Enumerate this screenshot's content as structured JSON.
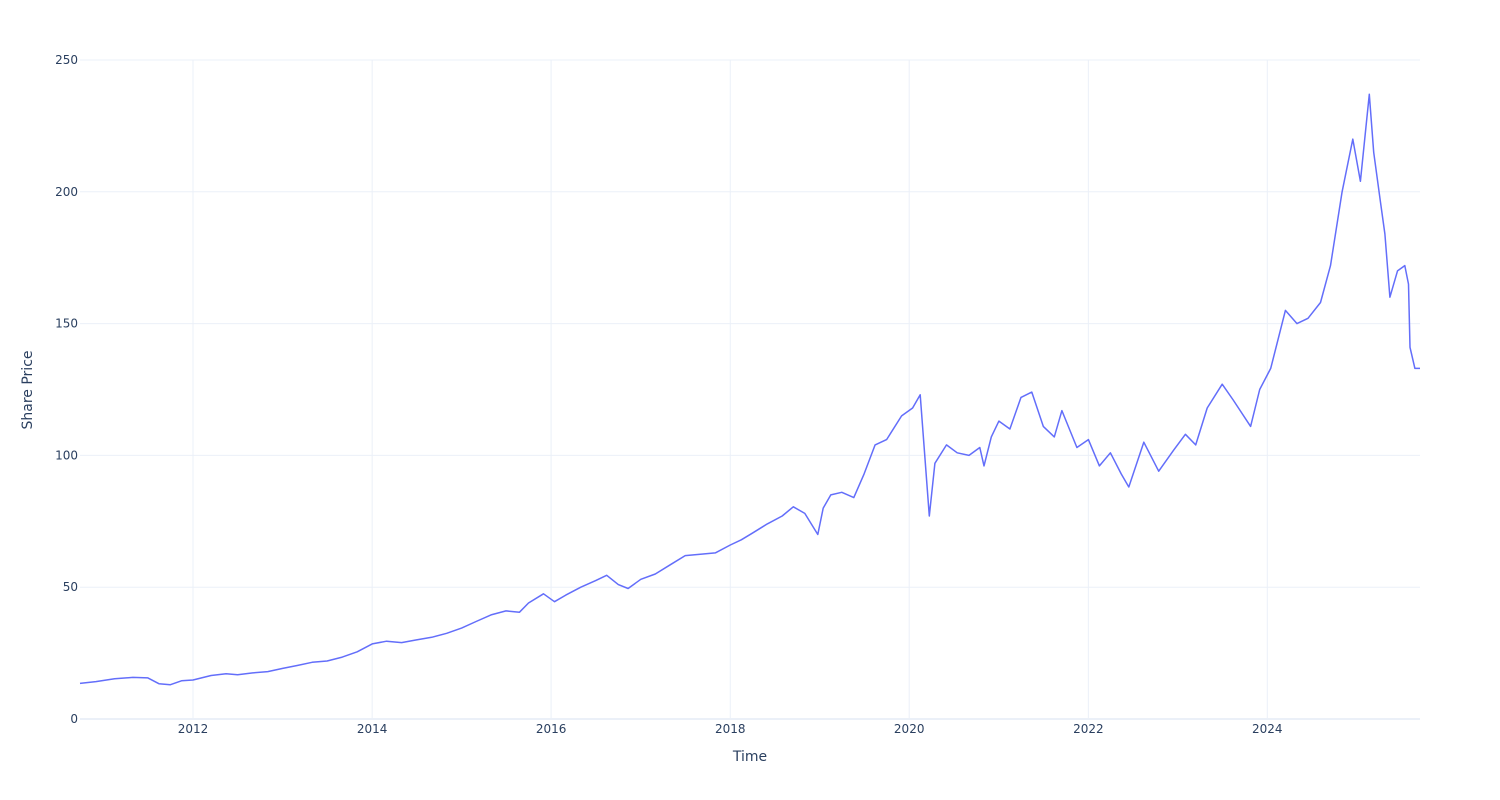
{
  "chart_data": {
    "type": "line",
    "title": "",
    "xlabel": "Time",
    "ylabel": "Share Price",
    "xlim": [
      "2010-09-27",
      "2025-09-15"
    ],
    "ylim": [
      0,
      250
    ],
    "x_ticks": [
      {
        "value": "2012-01-01",
        "label": "2012"
      },
      {
        "value": "2014-01-01",
        "label": "2014"
      },
      {
        "value": "2016-01-01",
        "label": "2016"
      },
      {
        "value": "2018-01-01",
        "label": "2018"
      },
      {
        "value": "2020-01-01",
        "label": "2020"
      },
      {
        "value": "2022-01-01",
        "label": "2022"
      },
      {
        "value": "2024-01-01",
        "label": "2024"
      }
    ],
    "y_ticks": [
      {
        "value": 0,
        "label": "0"
      },
      {
        "value": 50,
        "label": "50"
      },
      {
        "value": 100,
        "label": "100"
      },
      {
        "value": 150,
        "label": "150"
      },
      {
        "value": 200,
        "label": "200"
      },
      {
        "value": 250,
        "label": "250"
      }
    ],
    "grid": true,
    "legend": "none",
    "series": [
      {
        "color": "#636efa",
        "points": [
          [
            "2010-09-27",
            13.5
          ],
          [
            "2010-12-01",
            14.2
          ],
          [
            "2011-02-15",
            15.3
          ],
          [
            "2011-05-01",
            15.8
          ],
          [
            "2011-07-01",
            15.6
          ],
          [
            "2011-08-15",
            13.4
          ],
          [
            "2011-10-01",
            13.0
          ],
          [
            "2011-11-15",
            14.5
          ],
          [
            "2012-01-01",
            14.8
          ],
          [
            "2012-03-15",
            16.5
          ],
          [
            "2012-05-15",
            17.2
          ],
          [
            "2012-07-01",
            16.8
          ],
          [
            "2012-09-01",
            17.5
          ],
          [
            "2012-11-01",
            18.0
          ],
          [
            "2013-01-01",
            19.2
          ],
          [
            "2013-03-01",
            20.3
          ],
          [
            "2013-05-01",
            21.5
          ],
          [
            "2013-07-01",
            22.0
          ],
          [
            "2013-09-01",
            23.5
          ],
          [
            "2013-11-01",
            25.5
          ],
          [
            "2014-01-01",
            28.5
          ],
          [
            "2014-03-01",
            29.5
          ],
          [
            "2014-05-01",
            29.0
          ],
          [
            "2014-07-01",
            30.0
          ],
          [
            "2014-09-01",
            31.0
          ],
          [
            "2014-11-01",
            32.5
          ],
          [
            "2015-01-01",
            34.5
          ],
          [
            "2015-03-01",
            37.0
          ],
          [
            "2015-05-01",
            39.5
          ],
          [
            "2015-07-01",
            41.0
          ],
          [
            "2015-08-25",
            40.5
          ],
          [
            "2015-10-01",
            44.0
          ],
          [
            "2015-12-01",
            47.5
          ],
          [
            "2016-01-15",
            44.5
          ],
          [
            "2016-03-01",
            47.0
          ],
          [
            "2016-05-01",
            50.0
          ],
          [
            "2016-07-01",
            52.5
          ],
          [
            "2016-08-15",
            54.5
          ],
          [
            "2016-10-01",
            51.0
          ],
          [
            "2016-11-10",
            49.5
          ],
          [
            "2017-01-01",
            53.0
          ],
          [
            "2017-03-01",
            55.0
          ],
          [
            "2017-05-01",
            58.5
          ],
          [
            "2017-07-01",
            62.0
          ],
          [
            "2017-09-01",
            62.5
          ],
          [
            "2017-11-01",
            63.0
          ],
          [
            "2018-01-01",
            66.0
          ],
          [
            "2018-02-15",
            68.0
          ],
          [
            "2018-04-01",
            70.5
          ],
          [
            "2018-06-01",
            74.0
          ],
          [
            "2018-08-01",
            77.0
          ],
          [
            "2018-09-15",
            80.5
          ],
          [
            "2018-11-01",
            78.0
          ],
          [
            "2018-12-24",
            70.0
          ],
          [
            "2019-01-15",
            80.0
          ],
          [
            "2019-02-15",
            85.0
          ],
          [
            "2019-04-01",
            86.0
          ],
          [
            "2019-05-20",
            84.0
          ],
          [
            "2019-07-01",
            93.0
          ],
          [
            "2019-08-15",
            104.0
          ],
          [
            "2019-10-01",
            106.0
          ],
          [
            "2019-12-01",
            115.0
          ],
          [
            "2020-01-15",
            118.0
          ],
          [
            "2020-02-15",
            123.0
          ],
          [
            "2020-03-23",
            77.0
          ],
          [
            "2020-04-15",
            97.0
          ],
          [
            "2020-06-01",
            104.0
          ],
          [
            "2020-07-15",
            101.0
          ],
          [
            "2020-09-01",
            100.0
          ],
          [
            "2020-10-15",
            103.0
          ],
          [
            "2020-11-01",
            96.0
          ],
          [
            "2020-12-01",
            107.0
          ],
          [
            "2021-01-01",
            113.0
          ],
          [
            "2021-02-15",
            110.0
          ],
          [
            "2021-04-01",
            122.0
          ],
          [
            "2021-05-15",
            124.0
          ],
          [
            "2021-07-01",
            111.0
          ],
          [
            "2021-08-15",
            107.0
          ],
          [
            "2021-09-15",
            117.0
          ],
          [
            "2021-11-15",
            103.0
          ],
          [
            "2022-01-01",
            106.0
          ],
          [
            "2022-02-15",
            96.0
          ],
          [
            "2022-04-01",
            101.0
          ],
          [
            "2022-05-15",
            93.0
          ],
          [
            "2022-06-15",
            88.0
          ],
          [
            "2022-08-15",
            105.0
          ],
          [
            "2022-10-15",
            94.0
          ],
          [
            "2022-12-15",
            102.0
          ],
          [
            "2023-02-01",
            108.0
          ],
          [
            "2023-03-15",
            104.0
          ],
          [
            "2023-05-01",
            118.0
          ],
          [
            "2023-07-01",
            127.0
          ],
          [
            "2023-08-15",
            121.0
          ],
          [
            "2023-10-25",
            111.0
          ],
          [
            "2023-12-01",
            125.0
          ],
          [
            "2024-01-15",
            133.0
          ],
          [
            "2024-03-15",
            155.0
          ],
          [
            "2024-05-01",
            150.0
          ],
          [
            "2024-06-15",
            152.0
          ],
          [
            "2024-08-05",
            158.0
          ],
          [
            "2024-09-15",
            172.0
          ],
          [
            "2024-11-01",
            200.0
          ],
          [
            "2024-12-15",
            220.0
          ],
          [
            "2025-01-15",
            204.0
          ],
          [
            "2025-02-20",
            237.0
          ],
          [
            "2025-03-10",
            215.0
          ],
          [
            "2025-04-07",
            196.0
          ],
          [
            "2025-04-25",
            184.0
          ],
          [
            "2025-05-15",
            160.0
          ],
          [
            "2025-06-15",
            170.0
          ],
          [
            "2025-07-15",
            172.0
          ],
          [
            "2025-07-30",
            165.0
          ],
          [
            "2025-08-05",
            141.0
          ],
          [
            "2025-08-25",
            133.0
          ],
          [
            "2025-09-15",
            133.0
          ]
        ]
      }
    ]
  }
}
